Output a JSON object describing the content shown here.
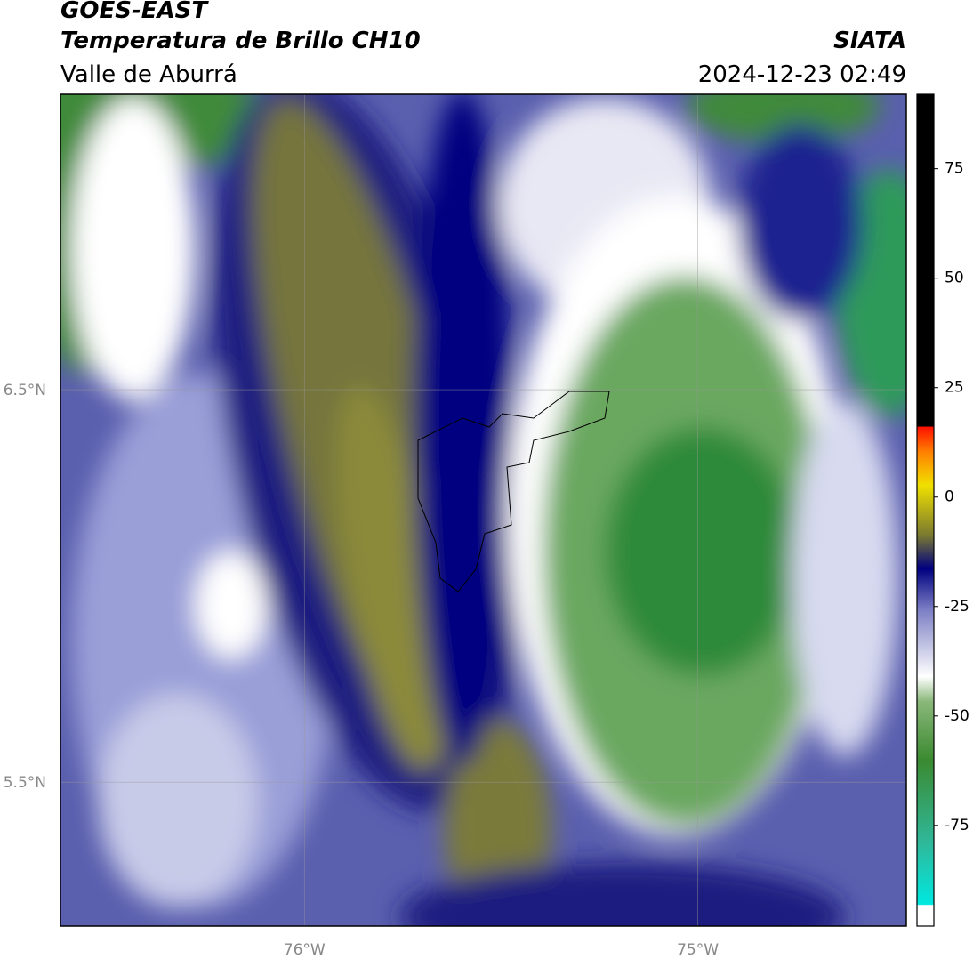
{
  "header": {
    "title": "GOES-EAST",
    "subtitle": "Temperatura de Brillo CH10",
    "region": "Valle de Aburrá",
    "source": "SIATA",
    "datetime": "2024-12-23 02:49"
  },
  "map": {
    "xlim": [
      -76.62,
      -74.47
    ],
    "ylim": [
      5.133,
      7.253
    ],
    "xticks": [
      {
        "value": -76,
        "label": "76°W"
      },
      {
        "value": -75,
        "label": "75°W"
      }
    ],
    "yticks": [
      {
        "value": 6.5,
        "label": "6.5°N"
      },
      {
        "value": 5.5,
        "label": "5.5°N"
      }
    ],
    "grid": true
  },
  "colorbar": {
    "lim": [
      -98,
      92
    ],
    "ticks": [
      -75,
      -50,
      -25,
      0,
      25,
      50,
      75
    ]
  }
}
